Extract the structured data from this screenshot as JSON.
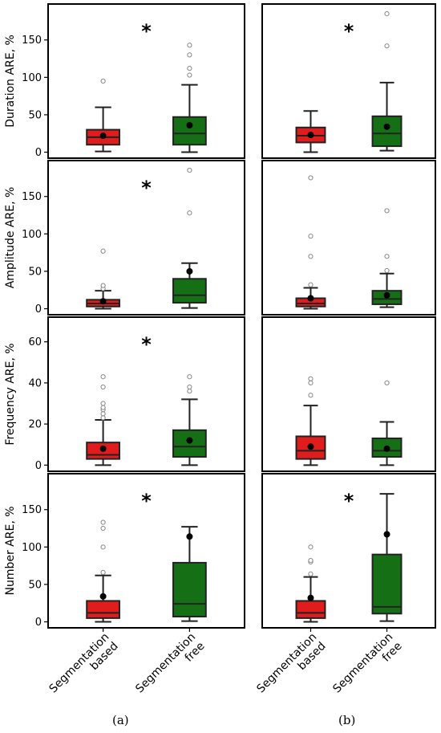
{
  "figure": {
    "panel_labels": [
      "(a)",
      "(b)"
    ],
    "colors": {
      "segmentation_based": "#e11c1c",
      "segmentation_free": "#157015",
      "outlier": "#888888",
      "mean": "#000000"
    }
  },
  "chart_data": [
    {
      "type": "box",
      "row": "Duration",
      "column": "a",
      "ylabel": "Duration ARE, %",
      "yticks": [
        0,
        50,
        100,
        150
      ],
      "ylim": [
        -8,
        198
      ],
      "categories": [
        "Segmentation\nbased",
        "Segmentation\nfree"
      ],
      "significance": "*",
      "boxes": [
        {
          "whisker_low": 1,
          "q1": 10,
          "median": 20,
          "q3": 30,
          "whisker_high": 60,
          "mean": 22,
          "outliers": [
            95
          ]
        },
        {
          "whisker_low": 0,
          "q1": 10,
          "median": 25,
          "q3": 47,
          "whisker_high": 90,
          "mean": 36,
          "outliers": [
            103,
            112,
            130,
            143
          ]
        }
      ]
    },
    {
      "type": "box",
      "row": "Duration",
      "column": "b",
      "ylabel": "",
      "yticks": [],
      "ylim": [
        -8,
        198
      ],
      "categories": [
        "Segmentation\nbased",
        "Segmentation\nfree"
      ],
      "significance": "*",
      "boxes": [
        {
          "whisker_low": 0,
          "q1": 13,
          "median": 22,
          "q3": 33,
          "whisker_high": 55,
          "mean": 23,
          "outliers": []
        },
        {
          "whisker_low": 2,
          "q1": 8,
          "median": 25,
          "q3": 48,
          "whisker_high": 93,
          "mean": 34,
          "outliers": [
            142,
            185
          ]
        }
      ]
    },
    {
      "type": "box",
      "row": "Amplitude",
      "column": "a",
      "ylabel": "Amplitude ARE, %",
      "yticks": [
        0,
        50,
        100,
        150
      ],
      "ylim": [
        -8,
        198
      ],
      "categories": [
        "Segmentation\nbased",
        "Segmentation\nfree"
      ],
      "significance": "*",
      "boxes": [
        {
          "whisker_low": 0,
          "q1": 3,
          "median": 7,
          "q3": 12,
          "whisker_high": 24,
          "mean": 10,
          "outliers": [
            27,
            31,
            77
          ]
        },
        {
          "whisker_low": 1,
          "q1": 8,
          "median": 18,
          "q3": 40,
          "whisker_high": 61,
          "mean": 50,
          "outliers": [
            128,
            185
          ]
        }
      ]
    },
    {
      "type": "box",
      "row": "Amplitude",
      "column": "b",
      "ylabel": "",
      "yticks": [],
      "ylim": [
        -8,
        198
      ],
      "categories": [
        "Segmentation\nbased",
        "Segmentation\nfree"
      ],
      "significance": "",
      "boxes": [
        {
          "whisker_low": 0,
          "q1": 3,
          "median": 7,
          "q3": 14,
          "whisker_high": 28,
          "mean": 14,
          "outliers": [
            32,
            70,
            97,
            175
          ]
        },
        {
          "whisker_low": 2,
          "q1": 6,
          "median": 13,
          "q3": 24,
          "whisker_high": 47,
          "mean": 18,
          "outliers": [
            51,
            70,
            131
          ]
        }
      ]
    },
    {
      "type": "box",
      "row": "Frequency",
      "column": "a",
      "ylabel": "Frequency ARE, %",
      "yticks": [
        0,
        20,
        40,
        60
      ],
      "ylim": [
        -3,
        72
      ],
      "categories": [
        "Segmentation\nbased",
        "Segmentation\nfree"
      ],
      "significance": "*",
      "boxes": [
        {
          "whisker_low": 0,
          "q1": 3,
          "median": 5,
          "q3": 11,
          "whisker_high": 22,
          "mean": 8,
          "outliers": [
            23,
            25,
            27,
            28,
            30,
            38,
            43
          ]
        },
        {
          "whisker_low": 0,
          "q1": 4,
          "median": 9,
          "q3": 17,
          "whisker_high": 32,
          "mean": 12,
          "outliers": [
            36,
            38,
            43
          ]
        }
      ]
    },
    {
      "type": "box",
      "row": "Frequency",
      "column": "b",
      "ylabel": "",
      "yticks": [],
      "ylim": [
        -3,
        72
      ],
      "categories": [
        "Segmentation\nbased",
        "Segmentation\nfree"
      ],
      "significance": "",
      "boxes": [
        {
          "whisker_low": 0,
          "q1": 3,
          "median": 7,
          "q3": 14,
          "whisker_high": 29,
          "mean": 9,
          "outliers": [
            34,
            40,
            42
          ]
        },
        {
          "whisker_low": 0,
          "q1": 4,
          "median": 7,
          "q3": 13,
          "whisker_high": 21,
          "mean": 8,
          "outliers": [
            40
          ]
        }
      ]
    },
    {
      "type": "box",
      "row": "Number",
      "column": "a",
      "ylabel": "Number ARE, %",
      "yticks": [
        0,
        50,
        100,
        150
      ],
      "ylim": [
        -8,
        198
      ],
      "categories": [
        "Segmentation\nbased",
        "Segmentation\nfree"
      ],
      "significance": "*",
      "boxes": [
        {
          "whisker_low": 0,
          "q1": 5,
          "median": 12,
          "q3": 28,
          "whisker_high": 62,
          "mean": 34,
          "outliers": [
            66,
            100,
            125,
            133
          ]
        },
        {
          "whisker_low": 1,
          "q1": 7,
          "median": 24,
          "q3": 79,
          "whisker_high": 127,
          "mean": 114,
          "outliers": []
        }
      ]
    },
    {
      "type": "box",
      "row": "Number",
      "column": "b",
      "ylabel": "",
      "yticks": [],
      "ylim": [
        -8,
        198
      ],
      "categories": [
        "Segmentation\nbased",
        "Segmentation\nfree"
      ],
      "significance": "*",
      "boxes": [
        {
          "whisker_low": 0,
          "q1": 5,
          "median": 12,
          "q3": 28,
          "whisker_high": 60,
          "mean": 32,
          "outliers": [
            64,
            80,
            82,
            100
          ]
        },
        {
          "whisker_low": 1,
          "q1": 11,
          "median": 20,
          "q3": 90,
          "whisker_high": 171,
          "mean": 117,
          "outliers": []
        }
      ]
    }
  ]
}
